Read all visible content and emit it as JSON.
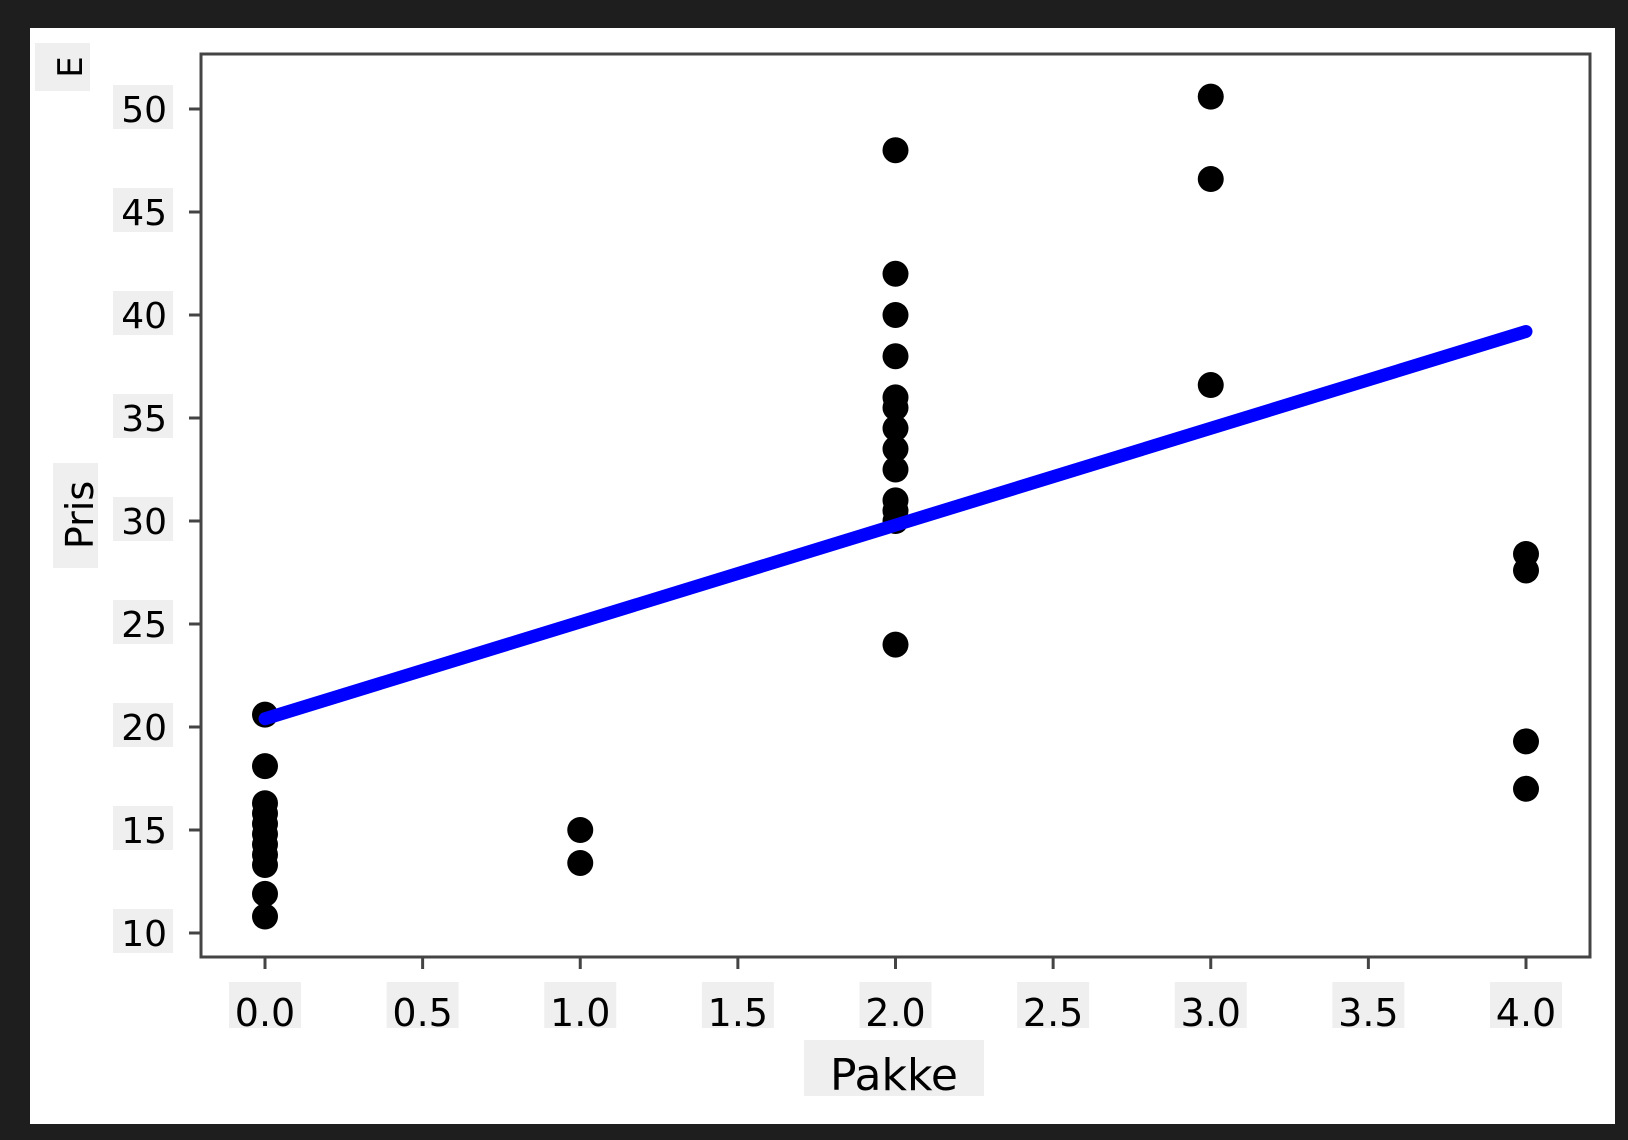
{
  "chart_data": {
    "type": "scatter",
    "title": "",
    "corner_label": "E",
    "xlabel": "Pakke",
    "ylabel": "Pris",
    "xlim": [
      -0.2,
      4.2
    ],
    "ylim": [
      9.3,
      52.7
    ],
    "xticks": [
      "0.0",
      "0.5",
      "1.0",
      "1.5",
      "2.0",
      "2.5",
      "3.0",
      "3.5",
      "4.0"
    ],
    "yticks": [
      "10",
      "15",
      "20",
      "25",
      "30",
      "35",
      "40",
      "45",
      "50"
    ],
    "grid": false,
    "points": {
      "x": [
        0,
        0,
        0,
        0,
        0,
        0,
        0,
        0,
        0,
        0,
        0,
        1,
        1,
        2,
        2,
        2,
        2,
        2,
        2,
        2,
        2,
        2,
        2,
        2,
        2,
        2,
        3,
        3,
        3,
        4,
        4,
        4,
        4
      ],
      "y": [
        20.6,
        18.1,
        16.3,
        15.8,
        15.3,
        14.8,
        14.3,
        13.8,
        13.3,
        11.9,
        10.8,
        15.0,
        13.4,
        48.0,
        42.0,
        40.0,
        38.0,
        36.0,
        35.5,
        34.5,
        33.5,
        32.5,
        31.0,
        30.0,
        24.0,
        30.5,
        50.6,
        46.6,
        36.6,
        28.4,
        27.6,
        19.3,
        17.0
      ]
    },
    "fit_line": {
      "x": [
        0,
        4
      ],
      "y": [
        20.4,
        39.2
      ],
      "color": "#0000ff"
    },
    "point_color": "#000000"
  }
}
